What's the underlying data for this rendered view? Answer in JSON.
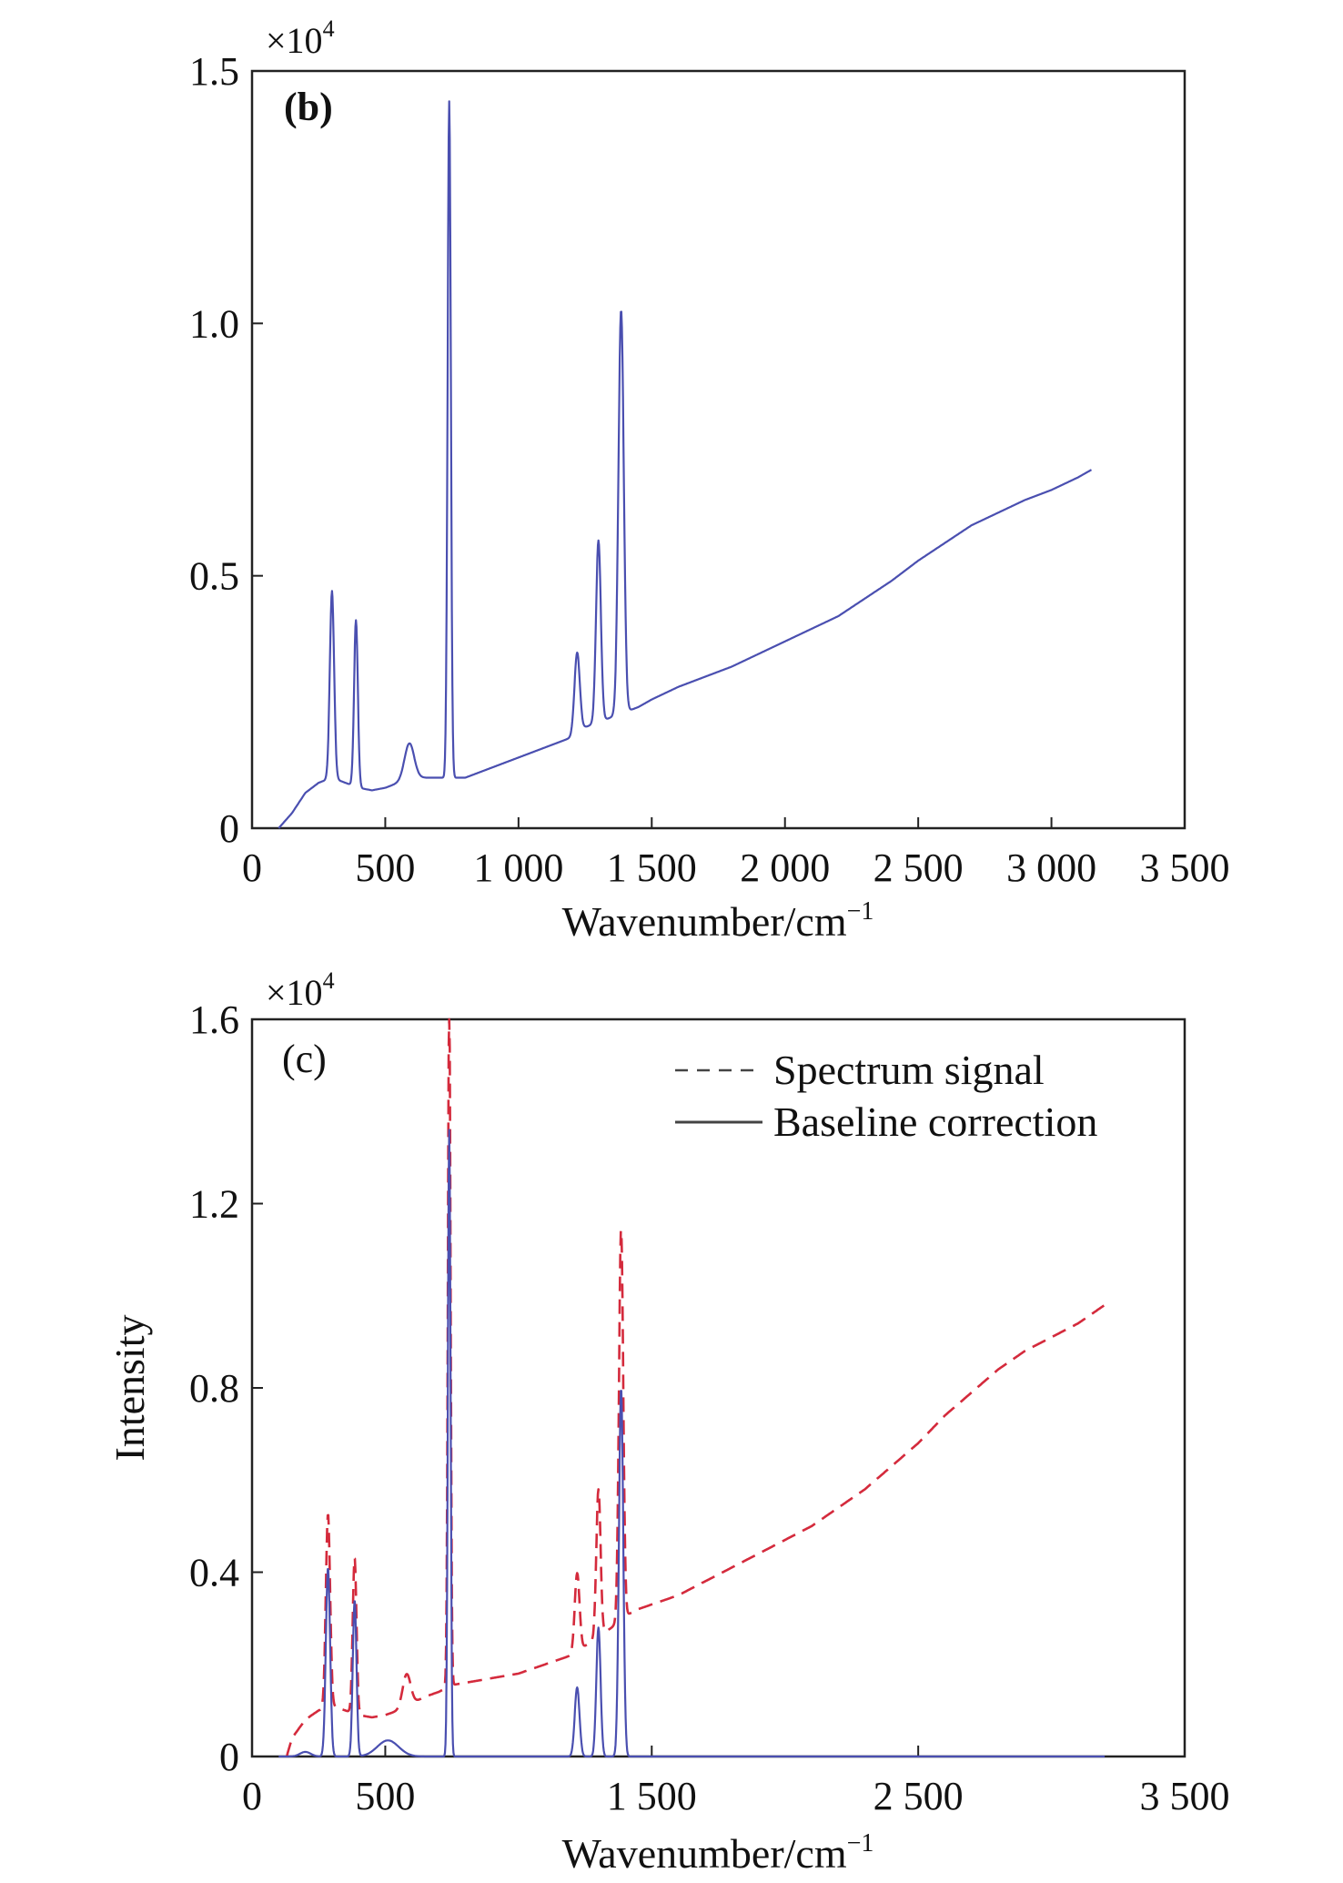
{
  "chart_data": [
    {
      "type": "line",
      "panel_label": "(b)",
      "multiplier": "×10",
      "multiplier_exp": "4",
      "xlabel": "Wavenumber/cm",
      "xlabel_exp": "−1",
      "ylabel": "",
      "xlim": [
        0,
        3500
      ],
      "ylim": [
        0,
        1.5
      ],
      "x_ticks": [
        0,
        500,
        1000,
        1500,
        2000,
        2500,
        3000,
        3500
      ],
      "x_tick_labels": [
        "0",
        "500",
        "1 000",
        "1 500",
        "2 000",
        "2 500",
        "3 000",
        "3 500"
      ],
      "y_ticks": [
        0,
        0.5,
        1.0,
        1.5
      ],
      "y_tick_labels": [
        "0",
        "0.5",
        "1.0",
        "1.5"
      ],
      "grid": false,
      "series": [
        {
          "color": "#4a4fb0",
          "style": "solid",
          "baseline": [
            [
              100,
              0
            ],
            [
              150,
              0.03
            ],
            [
              200,
              0.07
            ],
            [
              250,
              0.09
            ],
            [
              300,
              0.1
            ],
            [
              350,
              0.09
            ],
            [
              400,
              0.08
            ],
            [
              450,
              0.075
            ],
            [
              500,
              0.08
            ],
            [
              550,
              0.09
            ],
            [
              600,
              0.1
            ],
            [
              650,
              0.1
            ],
            [
              700,
              0.1
            ],
            [
              750,
              0.1
            ],
            [
              800,
              0.1
            ],
            [
              900,
              0.12
            ],
            [
              1000,
              0.14
            ],
            [
              1100,
              0.16
            ],
            [
              1150,
              0.17
            ],
            [
              1200,
              0.18
            ],
            [
              1250,
              0.2
            ],
            [
              1300,
              0.21
            ],
            [
              1350,
              0.22
            ],
            [
              1400,
              0.23
            ],
            [
              1450,
              0.24
            ],
            [
              1500,
              0.255
            ],
            [
              1600,
              0.28
            ],
            [
              1700,
              0.3
            ],
            [
              1800,
              0.32
            ],
            [
              1900,
              0.345
            ],
            [
              2000,
              0.37
            ],
            [
              2100,
              0.395
            ],
            [
              2200,
              0.42
            ],
            [
              2300,
              0.455
            ],
            [
              2400,
              0.49
            ],
            [
              2500,
              0.53
            ],
            [
              2600,
              0.565
            ],
            [
              2700,
              0.6
            ],
            [
              2800,
              0.625
            ],
            [
              2900,
              0.65
            ],
            [
              3000,
              0.67
            ],
            [
              3100,
              0.695
            ],
            [
              3150,
              0.71
            ]
          ],
          "peaks": [
            [
              300,
              0.37,
              8
            ],
            [
              390,
              0.33,
              7
            ],
            [
              590,
              0.07,
              18
            ],
            [
              740,
              1.34,
              6
            ],
            [
              1220,
              0.16,
              10
            ],
            [
              1300,
              0.36,
              9
            ],
            [
              1385,
              0.8,
              10
            ]
          ]
        }
      ]
    },
    {
      "type": "line",
      "panel_label": "(c)",
      "multiplier": "×10",
      "multiplier_exp": "4",
      "xlabel": "Wavenumber/cm",
      "xlabel_exp": "−1",
      "ylabel": "Intensity",
      "xlim": [
        0,
        3500
      ],
      "ylim": [
        0,
        1.6
      ],
      "x_ticks": [
        0,
        500,
        1500,
        2500,
        3500
      ],
      "x_tick_labels": [
        "0",
        "500",
        "1 500",
        "2 500",
        "3 500"
      ],
      "y_ticks": [
        0,
        0.4,
        0.8,
        1.2,
        1.6
      ],
      "y_tick_labels": [
        "0",
        "0.4",
        "0.8",
        "1.2",
        "1.6"
      ],
      "grid": false,
      "legend_position": "top-right",
      "series": [
        {
          "name": "Spectrum signal",
          "color": "#d42a3c",
          "style": "dashed",
          "baseline": [
            [
              130,
              0
            ],
            [
              150,
              0.04
            ],
            [
              200,
              0.08
            ],
            [
              250,
              0.1
            ],
            [
              300,
              0.11
            ],
            [
              350,
              0.1
            ],
            [
              400,
              0.09
            ],
            [
              450,
              0.085
            ],
            [
              500,
              0.09
            ],
            [
              550,
              0.1
            ],
            [
              600,
              0.115
            ],
            [
              650,
              0.13
            ],
            [
              700,
              0.14
            ],
            [
              750,
              0.155
            ],
            [
              800,
              0.16
            ],
            [
              900,
              0.17
            ],
            [
              1000,
              0.18
            ],
            [
              1100,
              0.2
            ],
            [
              1200,
              0.22
            ],
            [
              1250,
              0.24
            ],
            [
              1300,
              0.26
            ],
            [
              1350,
              0.28
            ],
            [
              1400,
              0.305
            ],
            [
              1450,
              0.32
            ],
            [
              1500,
              0.33
            ],
            [
              1600,
              0.35
            ],
            [
              1700,
              0.38
            ],
            [
              1800,
              0.41
            ],
            [
              1900,
              0.44
            ],
            [
              2000,
              0.47
            ],
            [
              2100,
              0.5
            ],
            [
              2200,
              0.54
            ],
            [
              2300,
              0.58
            ],
            [
              2400,
              0.63
            ],
            [
              2500,
              0.68
            ],
            [
              2600,
              0.74
            ],
            [
              2700,
              0.79
            ],
            [
              2800,
              0.84
            ],
            [
              2900,
              0.88
            ],
            [
              3000,
              0.91
            ],
            [
              3100,
              0.94
            ],
            [
              3200,
              0.98
            ]
          ],
          "peaks": [
            [
              285,
              0.42,
              8
            ],
            [
              385,
              0.34,
              7
            ],
            [
              580,
              0.07,
              15
            ],
            [
              740,
              1.5,
              5
            ],
            [
              1220,
              0.17,
              9
            ],
            [
              1300,
              0.32,
              8
            ],
            [
              1385,
              0.85,
              8
            ]
          ]
        },
        {
          "name": "Baseline correction",
          "color": "#4a4fb0",
          "style": "solid",
          "baseline": [
            [
              100,
              0
            ],
            [
              3200,
              0
            ]
          ],
          "peaks": [
            [
              200,
              0.01,
              20
            ],
            [
              285,
              0.41,
              8
            ],
            [
              385,
              0.34,
              7
            ],
            [
              510,
              0.035,
              40
            ],
            [
              740,
              1.36,
              5
            ],
            [
              1220,
              0.15,
              9
            ],
            [
              1300,
              0.28,
              8
            ],
            [
              1385,
              0.8,
              8
            ]
          ]
        }
      ]
    }
  ]
}
